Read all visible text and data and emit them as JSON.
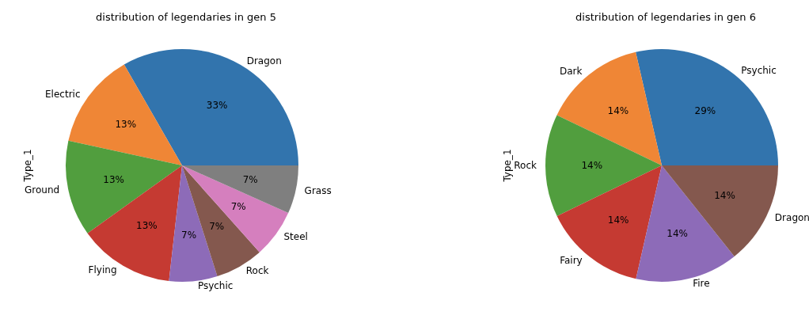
{
  "chart_data": [
    {
      "type": "pie",
      "title": "distribution of legendaries in gen 5",
      "ylabel": "Type_1",
      "categories": [
        "Dragon",
        "Electric",
        "Ground",
        "Flying",
        "Psychic",
        "Rock",
        "Steel",
        "Grass"
      ],
      "values": [
        33.3,
        13.3,
        13.3,
        13.3,
        6.7,
        6.7,
        6.7,
        6.7
      ],
      "value_labels": [
        "33%",
        "13%",
        "13%",
        "13%",
        "7%",
        "7%",
        "7%",
        "7%"
      ],
      "colors": [
        "#3274ad",
        "#ef8636",
        "#519e3e",
        "#c53a32",
        "#8d6bb8",
        "#84584e",
        "#d57fbe",
        "#7f7f7f"
      ],
      "legend": false
    },
    {
      "type": "pie",
      "title": "distribution of legendaries in gen 6",
      "ylabel": "Type_1",
      "categories": [
        "Psychic",
        "Dark",
        "Rock",
        "Fairy",
        "Fire",
        "Dragon"
      ],
      "values": [
        28.6,
        14.28,
        14.28,
        14.28,
        14.28,
        14.28
      ],
      "value_labels": [
        "29%",
        "14%",
        "14%",
        "14%",
        "14%",
        "14%"
      ],
      "colors": [
        "#3274ad",
        "#ef8636",
        "#519e3e",
        "#c53a32",
        "#8d6bb8",
        "#84584e"
      ],
      "legend": false
    }
  ]
}
